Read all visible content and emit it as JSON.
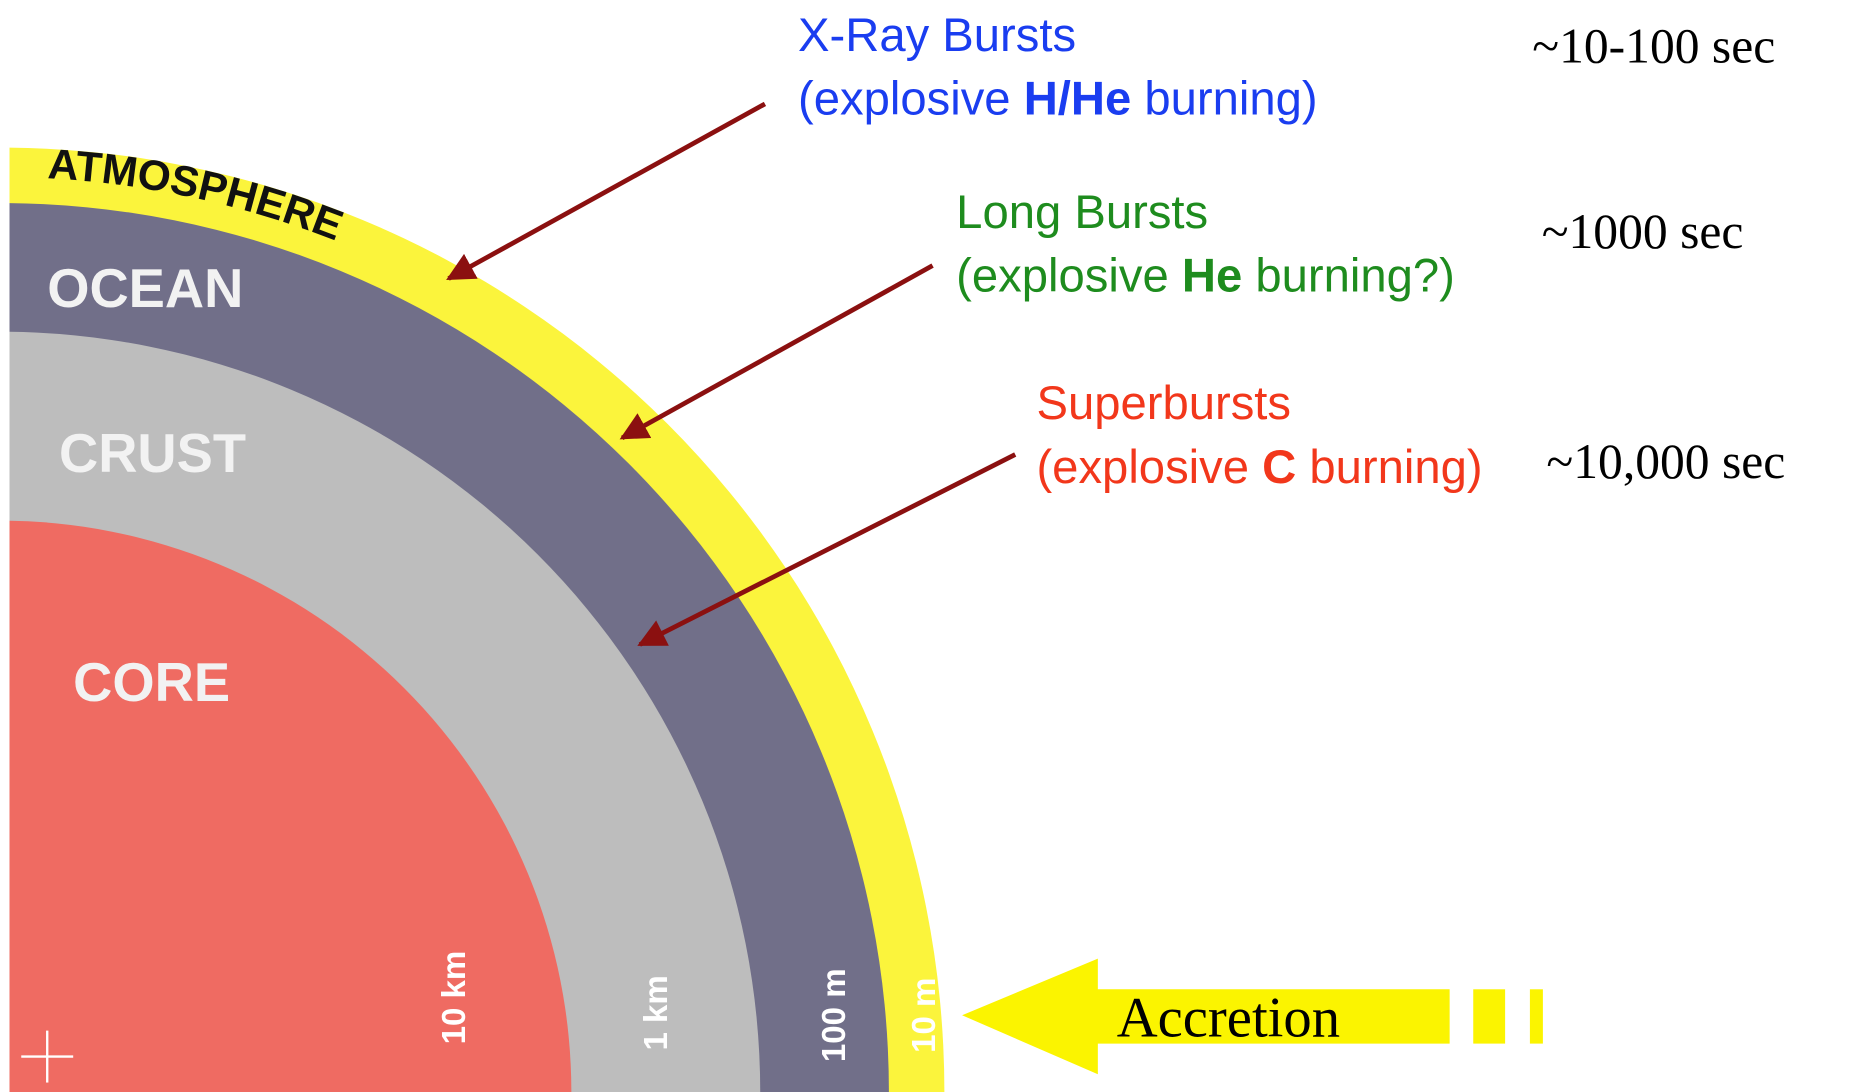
{
  "layers": [
    {
      "label": "ATMOSPHERE"
    },
    {
      "label": "OCEAN"
    },
    {
      "label": "CRUST"
    },
    {
      "label": "CORE"
    }
  ],
  "depths": [
    "10 km",
    "1 km",
    "100 m",
    "10 m"
  ],
  "bursts": [
    {
      "name": "X-Ray Bursts",
      "before": "(explosive ",
      "fuel": "H/He",
      "after": " burning)",
      "timescale": "~10-100 sec"
    },
    {
      "name": "Long Bursts",
      "before": "(explosive ",
      "fuel": "He",
      "after": " burning?)",
      "timescale": "~1000 sec"
    },
    {
      "name": "Superbursts",
      "before": "(explosive ",
      "fuel": "C",
      "after": " burning)",
      "timescale": "~10,000 sec"
    }
  ],
  "accretion": "Accretion"
}
